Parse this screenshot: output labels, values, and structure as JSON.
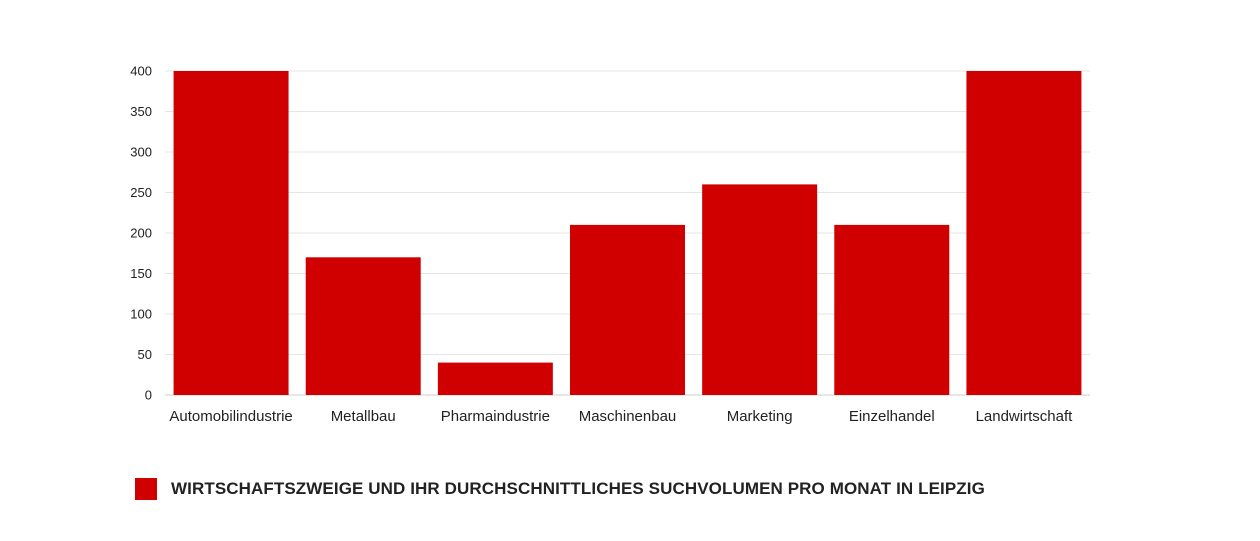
{
  "chart_data": {
    "type": "bar",
    "categories": [
      "Automobilindustrie",
      "Metallbau",
      "Pharmaindustrie",
      "Maschinenbau",
      "Marketing",
      "Einzelhandel",
      "Landwirtschaft"
    ],
    "series": [
      {
        "name": "WIRTSCHAFTSZWEIGE UND IHR DURCHSCHNITTLICHES SUCHVOLUMEN PRO MONAT IN LEIPZIG",
        "values": [
          400,
          170,
          40,
          210,
          260,
          210,
          400
        ]
      }
    ],
    "yticks": [
      "0",
      "50",
      "100",
      "150",
      "200",
      "250",
      "300",
      "350",
      "400"
    ],
    "ylim": [
      0,
      400
    ],
    "grid": true,
    "legend_position": "bottom-left",
    "colors": {
      "bar": "#d10000",
      "grid": "#e6e6e6",
      "baseline": "#cccccc"
    }
  }
}
